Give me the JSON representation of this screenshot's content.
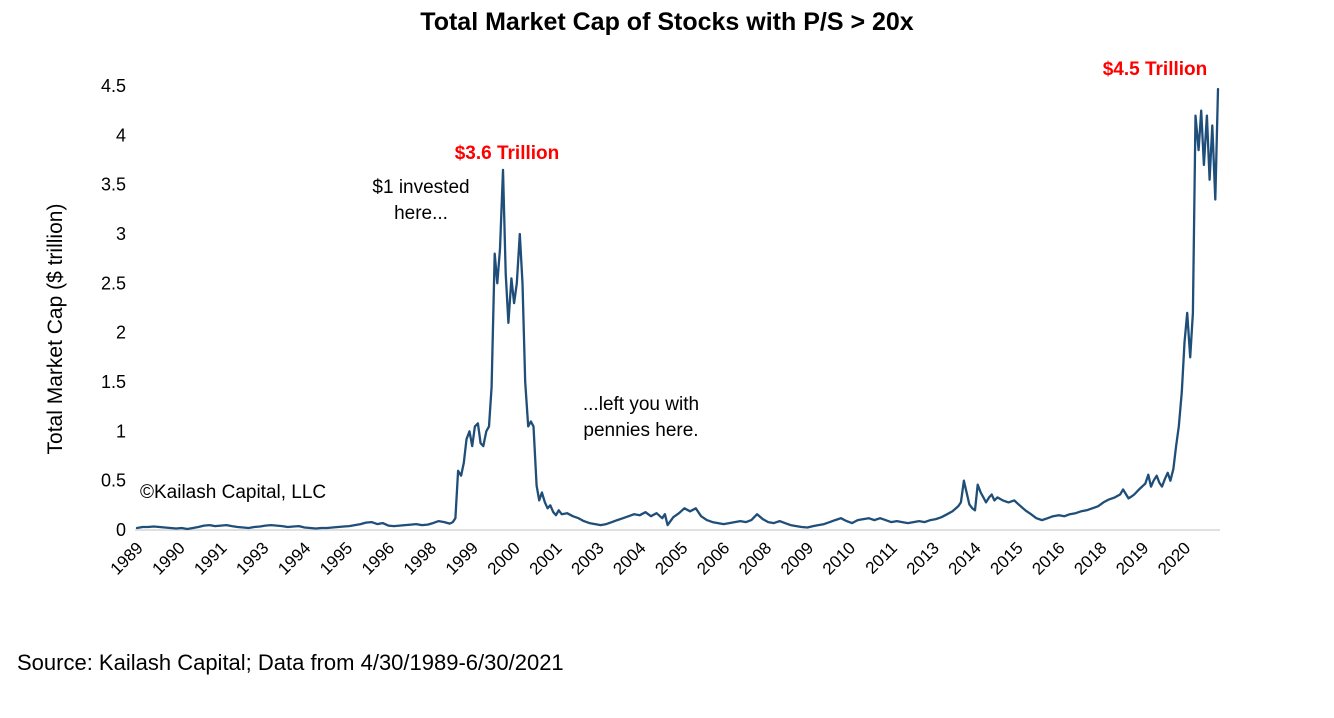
{
  "chart": {
    "title": "Total Market Cap of Stocks with P/S > 20x",
    "y_axis_title": "Total Market Cap ($ trillion)",
    "watermark": "©Kailash Capital, LLC",
    "source": "Source: Kailash Capital; Data from 4/30/1989-6/30/2021",
    "annotations": {
      "peak_2000": "$3.6 Trillion",
      "peak_2021": "$4.5 Trillion",
      "invested_line1": "$1 invested",
      "invested_line2": "here...",
      "pennies_line1": "...left you with",
      "pennies_line2": "pennies here."
    }
  },
  "chart_data": {
    "type": "line",
    "title": "Total Market Cap of Stocks with P/S > 20x",
    "xlabel": "",
    "ylabel": "Total Market Cap ($ trillion)",
    "xlim": [
      1989.25,
      2021.5
    ],
    "ylim": [
      0,
      4.5
    ],
    "grid": false,
    "legend": false,
    "line_color": "#1f4e79",
    "axis_line_color": "#d6d6d6",
    "annotation_color": "#ff0000",
    "y_tick_values": [
      0,
      0.5,
      1,
      1.5,
      2,
      2.5,
      3,
      3.5,
      4,
      4.5
    ],
    "y_tick_labels": [
      "0",
      "0.5",
      "1",
      "1.5",
      "2",
      "2.5",
      "3",
      "3.5",
      "4",
      "4.5"
    ],
    "x_tick_positions": [
      1989.25,
      1990.5,
      1991.75,
      1993,
      1994.25,
      1995.5,
      1996.75,
      1998,
      1999.25,
      2000.5,
      2001.75,
      2003,
      2004.25,
      2005.5,
      2006.75,
      2008,
      2009.25,
      2010.5,
      2011.75,
      2013,
      2014.25,
      2015.5,
      2016.75,
      2018,
      2019.25,
      2020.5
    ],
    "x_tick_labels": [
      "1989",
      "1990",
      "1991",
      "1993",
      "1994",
      "1995",
      "1996",
      "1998",
      "1999",
      "2000",
      "2001",
      "2003",
      "2004",
      "2005",
      "2006",
      "2008",
      "2009",
      "2010",
      "2011",
      "2013",
      "2014",
      "2015",
      "2016",
      "2018",
      "2019",
      "2020"
    ],
    "annotations": [
      {
        "text": "$3.6 Trillion",
        "x": 2000.17,
        "y": 3.65,
        "color": "#ff0000"
      },
      {
        "text": "$4.5 Trillion",
        "x": 2021.5,
        "y": 4.47,
        "color": "#ff0000"
      },
      {
        "text": "$1 invested here...",
        "x": 1999.6,
        "y": 3.1,
        "color": "#000000"
      },
      {
        "text": "...left you with pennies here.",
        "x": 2004.3,
        "y": 1.1,
        "color": "#000000"
      }
    ],
    "series": [
      {
        "name": "Total Market Cap of Stocks with P/S > 20x",
        "points": [
          [
            1989.25,
            0.02
          ],
          [
            1989.42,
            0.03
          ],
          [
            1989.58,
            0.03
          ],
          [
            1989.75,
            0.035
          ],
          [
            1989.92,
            0.03
          ],
          [
            1990.08,
            0.025
          ],
          [
            1990.25,
            0.02
          ],
          [
            1990.42,
            0.015
          ],
          [
            1990.58,
            0.02
          ],
          [
            1990.75,
            0.01
          ],
          [
            1990.92,
            0.02
          ],
          [
            1991.08,
            0.03
          ],
          [
            1991.25,
            0.045
          ],
          [
            1991.42,
            0.05
          ],
          [
            1991.58,
            0.04
          ],
          [
            1991.75,
            0.045
          ],
          [
            1991.92,
            0.05
          ],
          [
            1992.08,
            0.04
          ],
          [
            1992.25,
            0.03
          ],
          [
            1992.42,
            0.025
          ],
          [
            1992.58,
            0.02
          ],
          [
            1992.75,
            0.03
          ],
          [
            1992.92,
            0.035
          ],
          [
            1993.08,
            0.045
          ],
          [
            1993.25,
            0.05
          ],
          [
            1993.42,
            0.045
          ],
          [
            1993.58,
            0.04
          ],
          [
            1993.75,
            0.03
          ],
          [
            1993.92,
            0.035
          ],
          [
            1994.08,
            0.04
          ],
          [
            1994.25,
            0.025
          ],
          [
            1994.42,
            0.02
          ],
          [
            1994.58,
            0.015
          ],
          [
            1994.75,
            0.02
          ],
          [
            1994.92,
            0.02
          ],
          [
            1995.08,
            0.025
          ],
          [
            1995.25,
            0.03
          ],
          [
            1995.42,
            0.035
          ],
          [
            1995.58,
            0.04
          ],
          [
            1995.75,
            0.05
          ],
          [
            1995.92,
            0.06
          ],
          [
            1996.08,
            0.075
          ],
          [
            1996.25,
            0.08
          ],
          [
            1996.42,
            0.06
          ],
          [
            1996.58,
            0.07
          ],
          [
            1996.75,
            0.045
          ],
          [
            1996.92,
            0.04
          ],
          [
            1997.08,
            0.045
          ],
          [
            1997.25,
            0.05
          ],
          [
            1997.42,
            0.055
          ],
          [
            1997.58,
            0.06
          ],
          [
            1997.75,
            0.05
          ],
          [
            1997.92,
            0.055
          ],
          [
            1998.08,
            0.07
          ],
          [
            1998.25,
            0.09
          ],
          [
            1998.42,
            0.08
          ],
          [
            1998.58,
            0.065
          ],
          [
            1998.67,
            0.08
          ],
          [
            1998.75,
            0.12
          ],
          [
            1998.83,
            0.6
          ],
          [
            1998.92,
            0.55
          ],
          [
            1999.0,
            0.68
          ],
          [
            1999.08,
            0.92
          ],
          [
            1999.17,
            1.0
          ],
          [
            1999.25,
            0.85
          ],
          [
            1999.33,
            1.05
          ],
          [
            1999.42,
            1.08
          ],
          [
            1999.5,
            0.88
          ],
          [
            1999.58,
            0.85
          ],
          [
            1999.67,
            1.0
          ],
          [
            1999.75,
            1.05
          ],
          [
            1999.83,
            1.45
          ],
          [
            1999.92,
            2.8
          ],
          [
            2000.0,
            2.5
          ],
          [
            2000.08,
            2.85
          ],
          [
            2000.17,
            3.65
          ],
          [
            2000.25,
            2.6
          ],
          [
            2000.33,
            2.1
          ],
          [
            2000.42,
            2.55
          ],
          [
            2000.5,
            2.3
          ],
          [
            2000.58,
            2.5
          ],
          [
            2000.67,
            3.0
          ],
          [
            2000.75,
            2.5
          ],
          [
            2000.83,
            1.5
          ],
          [
            2000.92,
            1.05
          ],
          [
            2001.0,
            1.1
          ],
          [
            2001.08,
            1.05
          ],
          [
            2001.17,
            0.45
          ],
          [
            2001.25,
            0.3
          ],
          [
            2001.33,
            0.38
          ],
          [
            2001.42,
            0.28
          ],
          [
            2001.5,
            0.22
          ],
          [
            2001.58,
            0.25
          ],
          [
            2001.67,
            0.18
          ],
          [
            2001.75,
            0.15
          ],
          [
            2001.83,
            0.2
          ],
          [
            2001.92,
            0.16
          ],
          [
            2002.08,
            0.17
          ],
          [
            2002.25,
            0.14
          ],
          [
            2002.42,
            0.12
          ],
          [
            2002.58,
            0.09
          ],
          [
            2002.75,
            0.07
          ],
          [
            2002.92,
            0.06
          ],
          [
            2003.08,
            0.05
          ],
          [
            2003.25,
            0.06
          ],
          [
            2003.42,
            0.08
          ],
          [
            2003.58,
            0.1
          ],
          [
            2003.75,
            0.12
          ],
          [
            2003.92,
            0.14
          ],
          [
            2004.08,
            0.16
          ],
          [
            2004.25,
            0.15
          ],
          [
            2004.42,
            0.18
          ],
          [
            2004.58,
            0.14
          ],
          [
            2004.75,
            0.17
          ],
          [
            2004.92,
            0.12
          ],
          [
            2005.0,
            0.16
          ],
          [
            2005.08,
            0.05
          ],
          [
            2005.25,
            0.13
          ],
          [
            2005.42,
            0.17
          ],
          [
            2005.58,
            0.22
          ],
          [
            2005.75,
            0.19
          ],
          [
            2005.92,
            0.22
          ],
          [
            2006.08,
            0.14
          ],
          [
            2006.25,
            0.1
          ],
          [
            2006.42,
            0.08
          ],
          [
            2006.58,
            0.07
          ],
          [
            2006.75,
            0.06
          ],
          [
            2006.92,
            0.07
          ],
          [
            2007.08,
            0.08
          ],
          [
            2007.25,
            0.09
          ],
          [
            2007.42,
            0.08
          ],
          [
            2007.58,
            0.1
          ],
          [
            2007.75,
            0.16
          ],
          [
            2007.92,
            0.11
          ],
          [
            2008.08,
            0.08
          ],
          [
            2008.25,
            0.07
          ],
          [
            2008.42,
            0.09
          ],
          [
            2008.58,
            0.07
          ],
          [
            2008.75,
            0.05
          ],
          [
            2008.92,
            0.04
          ],
          [
            2009.08,
            0.03
          ],
          [
            2009.25,
            0.025
          ],
          [
            2009.42,
            0.04
          ],
          [
            2009.58,
            0.05
          ],
          [
            2009.75,
            0.06
          ],
          [
            2009.92,
            0.08
          ],
          [
            2010.08,
            0.1
          ],
          [
            2010.25,
            0.12
          ],
          [
            2010.42,
            0.09
          ],
          [
            2010.58,
            0.07
          ],
          [
            2010.75,
            0.1
          ],
          [
            2010.92,
            0.11
          ],
          [
            2011.08,
            0.12
          ],
          [
            2011.25,
            0.1
          ],
          [
            2011.42,
            0.12
          ],
          [
            2011.58,
            0.1
          ],
          [
            2011.75,
            0.08
          ],
          [
            2011.92,
            0.09
          ],
          [
            2012.08,
            0.08
          ],
          [
            2012.25,
            0.07
          ],
          [
            2012.42,
            0.08
          ],
          [
            2012.58,
            0.09
          ],
          [
            2012.75,
            0.08
          ],
          [
            2012.92,
            0.1
          ],
          [
            2013.08,
            0.11
          ],
          [
            2013.25,
            0.13
          ],
          [
            2013.42,
            0.16
          ],
          [
            2013.58,
            0.19
          ],
          [
            2013.75,
            0.24
          ],
          [
            2013.83,
            0.28
          ],
          [
            2013.92,
            0.5
          ],
          [
            2014.0,
            0.38
          ],
          [
            2014.08,
            0.26
          ],
          [
            2014.17,
            0.22
          ],
          [
            2014.25,
            0.2
          ],
          [
            2014.33,
            0.46
          ],
          [
            2014.42,
            0.38
          ],
          [
            2014.5,
            0.33
          ],
          [
            2014.58,
            0.28
          ],
          [
            2014.67,
            0.33
          ],
          [
            2014.75,
            0.36
          ],
          [
            2014.83,
            0.3
          ],
          [
            2014.92,
            0.33
          ],
          [
            2015.08,
            0.3
          ],
          [
            2015.25,
            0.28
          ],
          [
            2015.42,
            0.3
          ],
          [
            2015.58,
            0.25
          ],
          [
            2015.75,
            0.2
          ],
          [
            2015.92,
            0.16
          ],
          [
            2016.08,
            0.12
          ],
          [
            2016.25,
            0.1
          ],
          [
            2016.42,
            0.12
          ],
          [
            2016.58,
            0.14
          ],
          [
            2016.75,
            0.15
          ],
          [
            2016.92,
            0.14
          ],
          [
            2017.08,
            0.16
          ],
          [
            2017.25,
            0.17
          ],
          [
            2017.42,
            0.19
          ],
          [
            2017.58,
            0.2
          ],
          [
            2017.75,
            0.22
          ],
          [
            2017.92,
            0.24
          ],
          [
            2018.08,
            0.28
          ],
          [
            2018.25,
            0.31
          ],
          [
            2018.42,
            0.33
          ],
          [
            2018.58,
            0.36
          ],
          [
            2018.67,
            0.41
          ],
          [
            2018.83,
            0.32
          ],
          [
            2018.92,
            0.34
          ],
          [
            2019.0,
            0.36
          ],
          [
            2019.17,
            0.42
          ],
          [
            2019.33,
            0.47
          ],
          [
            2019.42,
            0.56
          ],
          [
            2019.5,
            0.44
          ],
          [
            2019.58,
            0.5
          ],
          [
            2019.67,
            0.55
          ],
          [
            2019.75,
            0.48
          ],
          [
            2019.83,
            0.44
          ],
          [
            2019.92,
            0.52
          ],
          [
            2020.0,
            0.58
          ],
          [
            2020.08,
            0.5
          ],
          [
            2020.17,
            0.62
          ],
          [
            2020.25,
            0.85
          ],
          [
            2020.33,
            1.05
          ],
          [
            2020.42,
            1.4
          ],
          [
            2020.5,
            1.9
          ],
          [
            2020.58,
            2.2
          ],
          [
            2020.67,
            1.75
          ],
          [
            2020.75,
            2.2
          ],
          [
            2020.83,
            4.2
          ],
          [
            2020.92,
            3.85
          ],
          [
            2021.0,
            4.25
          ],
          [
            2021.08,
            3.7
          ],
          [
            2021.17,
            4.2
          ],
          [
            2021.25,
            3.55
          ],
          [
            2021.33,
            4.1
          ],
          [
            2021.42,
            3.35
          ],
          [
            2021.5,
            4.47
          ]
        ]
      }
    ]
  }
}
